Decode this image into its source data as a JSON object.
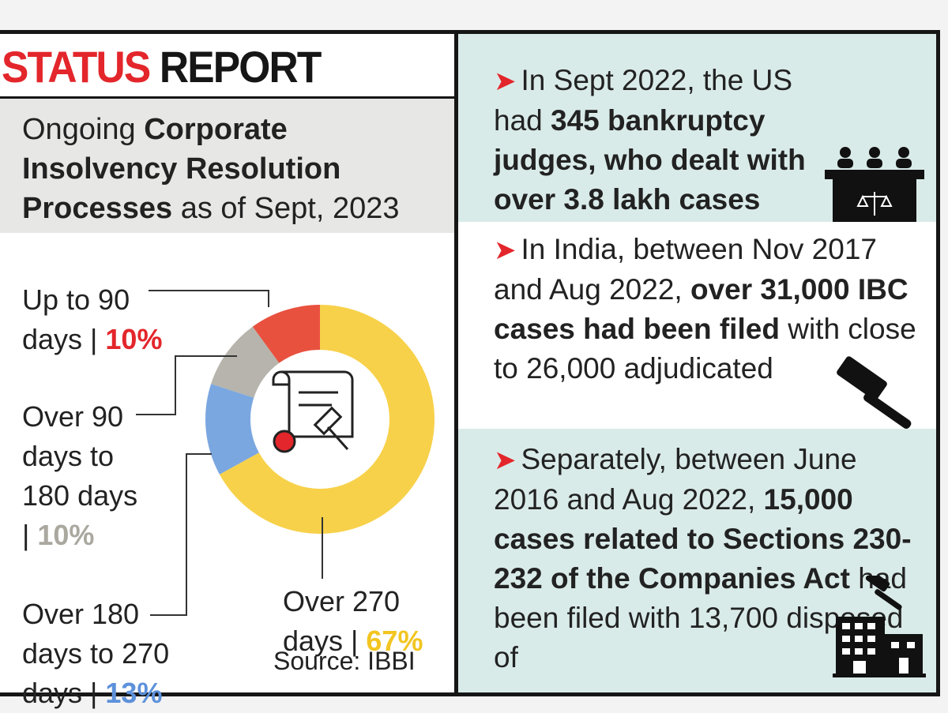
{
  "header": {
    "title_red": "STATUS",
    "title_black": " REPORT"
  },
  "subtitle": {
    "pre": "Ongoing ",
    "bold": "Corporate Insolvency Resolution Processes",
    "post": " as of Sept, 2023"
  },
  "legend": {
    "up_to_90_line1": "Up to 90",
    "up_to_90_line2": "days | ",
    "up_to_90_pct": "10%",
    "over_90_line1": "Over 90",
    "over_90_line2": "days to",
    "over_90_line3": "180 days",
    "over_90_line4": "| ",
    "over_90_pct": "10%",
    "over_180_line1": "Over 180",
    "over_180_line2": "days to 270",
    "over_180_line3": "days | ",
    "over_180_pct": "13%",
    "over_270_line1": "Over 270",
    "over_270_line2": "days | ",
    "over_270_pct": "67%"
  },
  "source": "Source: IBBI",
  "chart_data": {
    "type": "pie",
    "variant": "donut",
    "categories": [
      "Up to 90 days",
      "Over 90 days to 180 days",
      "Over 180 days to 270 days",
      "Over 270 days"
    ],
    "values": [
      10,
      10,
      13,
      67
    ],
    "colors": [
      "#e9513f",
      "#b6b4ac",
      "#7ba7e0",
      "#f7d14a"
    ],
    "unit": "%"
  },
  "colors": {
    "accent_red": "#e3262b",
    "panel_teal": "#d9ebe9",
    "pct_red": "#e3262b",
    "pct_grey": "#aaa89f",
    "pct_blue": "#5d91db",
    "pct_yellow": "#f2c521"
  },
  "panels": [
    {
      "arrow": "➤",
      "t1": "In Sept 2022, the US had ",
      "b1": "345 bankruptcy judges, who dealt with over 3.8 lakh cases",
      "t2": "",
      "icon": "court-bench-icon"
    },
    {
      "arrow": "➤",
      "t1": "In India, between Nov 2017 and Aug 2022, ",
      "b1": "over 31,000 IBC cases had been filed",
      "t2": " with close to 26,000 adjudicated",
      "icon": "gavel-icon"
    },
    {
      "arrow": "➤",
      "t1": "Separately, between June 2016 and Aug 2022, ",
      "b1": "15,000 cases related to Sections 230-232 of the Companies Act",
      "t2": " had been filed with 13,700 disposed of",
      "icon": "buildings-gavel-icon"
    }
  ]
}
